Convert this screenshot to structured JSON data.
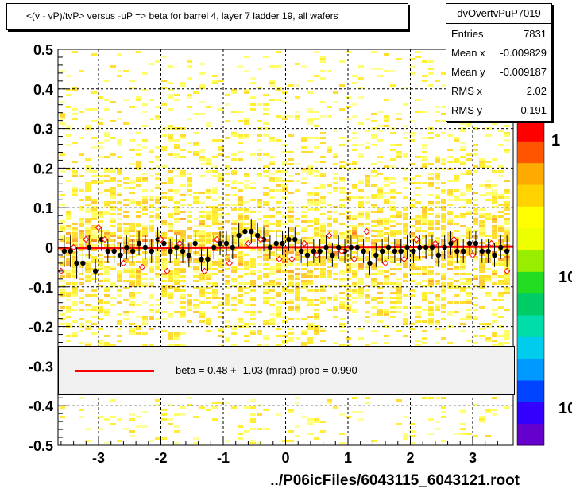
{
  "title": "<(v - vP)/tvP> versus  -uP => beta for barrel 4, layer 7 ladder 19, all wafers",
  "stats": {
    "name": "dvOvertvPuP7019",
    "rows": [
      {
        "label": "Entries",
        "value": "7831"
      },
      {
        "label": "Mean x",
        "value": "-0.009829"
      },
      {
        "label": "Mean y",
        "value": "-0.009187"
      },
      {
        "label": "RMS x",
        "value": "2.02"
      },
      {
        "label": "RMS y",
        "value": "0.191"
      }
    ]
  },
  "legend": {
    "text": "beta =    0.48 +-   1.03 (mrad) prob = 0.990",
    "line_color": "#ff0000"
  },
  "xlabel": "../P06icFiles/6043115_6043121.root",
  "colors": {
    "fit_line": "#ff0000",
    "profile_points": "#000000",
    "open_markers": "#ff0000"
  },
  "chart_data": {
    "type": "heatmap",
    "xlim": [
      -3.65,
      3.65
    ],
    "ylim": [
      -0.5,
      0.5
    ],
    "x_ticks": [
      "-3",
      "-2",
      "-1",
      "0",
      "1",
      "2",
      "3"
    ],
    "x_tick_values": [
      -3,
      -2,
      -1,
      0,
      1,
      2,
      3
    ],
    "y_ticks": [
      "-0.5",
      "-0.4",
      "-0.3",
      "-0.2",
      "-0.1",
      "0",
      "0.1",
      "0.2",
      "0.3",
      "0.4",
      "0.5"
    ],
    "y_tick_values": [
      -0.5,
      -0.4,
      -0.3,
      -0.2,
      -0.1,
      0,
      0.1,
      0.2,
      0.3,
      0.4,
      0.5
    ],
    "grid": true,
    "colorbar_labels": [
      "1",
      "10",
      "10"
    ],
    "fit": {
      "slope_mrad": 0.48,
      "error_mrad": 1.03,
      "prob": 0.99
    },
    "profile": {
      "x": [
        -3.55,
        -3.45,
        -3.35,
        -3.25,
        -3.15,
        -3.05,
        -2.95,
        -2.85,
        -2.75,
        -2.65,
        -2.55,
        -2.45,
        -2.35,
        -2.25,
        -2.15,
        -2.05,
        -1.95,
        -1.85,
        -1.75,
        -1.65,
        -1.55,
        -1.45,
        -1.35,
        -1.25,
        -1.15,
        -1.05,
        -0.95,
        -0.85,
        -0.75,
        -0.65,
        -0.55,
        -0.45,
        -0.35,
        -0.25,
        -0.15,
        -0.05,
        0.05,
        0.15,
        0.25,
        0.35,
        0.45,
        0.55,
        0.65,
        0.75,
        0.85,
        0.95,
        1.05,
        1.15,
        1.25,
        1.35,
        1.45,
        1.55,
        1.65,
        1.75,
        1.85,
        1.95,
        2.05,
        2.15,
        2.25,
        2.35,
        2.45,
        2.55,
        2.65,
        2.75,
        2.85,
        2.95,
        3.05,
        3.15,
        3.25,
        3.35,
        3.45,
        3.55
      ],
      "y": [
        -0.01,
        -0.01,
        -0.04,
        -0.04,
        0.0,
        -0.06,
        0.02,
        -0.01,
        -0.01,
        -0.02,
        0.0,
        -0.01,
        0.01,
        0.0,
        -0.01,
        0.02,
        0.01,
        -0.01,
        0.0,
        -0.01,
        -0.02,
        0.01,
        -0.03,
        -0.03,
        0.0,
        0.01,
        0.01,
        0.0,
        0.03,
        0.04,
        0.04,
        0.03,
        0.02,
        0.0,
        0.01,
        0.01,
        0.02,
        0.02,
        -0.01,
        -0.02,
        -0.01,
        -0.01,
        0.0,
        -0.02,
        0.0,
        -0.01,
        0.0,
        0.0,
        -0.01,
        -0.04,
        -0.02,
        -0.01,
        0.0,
        -0.01,
        -0.01,
        0.0,
        -0.01,
        0.0,
        0.0,
        0.0,
        -0.02,
        0.0,
        0.01,
        -0.01,
        -0.01,
        0.01,
        0.01,
        -0.01,
        -0.01,
        -0.02,
        0.0,
        -0.01
      ],
      "err": [
        0.04,
        0.04,
        0.04,
        0.03,
        0.03,
        0.03,
        0.03,
        0.03,
        0.03,
        0.03,
        0.03,
        0.03,
        0.03,
        0.03,
        0.03,
        0.03,
        0.03,
        0.03,
        0.03,
        0.03,
        0.03,
        0.03,
        0.03,
        0.03,
        0.03,
        0.03,
        0.03,
        0.03,
        0.03,
        0.03,
        0.03,
        0.03,
        0.03,
        0.03,
        0.03,
        0.03,
        0.03,
        0.03,
        0.03,
        0.03,
        0.03,
        0.03,
        0.03,
        0.03,
        0.03,
        0.03,
        0.03,
        0.03,
        0.03,
        0.03,
        0.03,
        0.03,
        0.03,
        0.03,
        0.03,
        0.03,
        0.03,
        0.03,
        0.03,
        0.03,
        0.03,
        0.03,
        0.03,
        0.03,
        0.03,
        0.03,
        0.03,
        0.03,
        0.03,
        0.03,
        0.03,
        0.04
      ]
    },
    "open_markers": {
      "x": [
        -3.6,
        -3.4,
        -3.2,
        -3.0,
        -2.9,
        -2.6,
        -2.3,
        -2.0,
        -1.9,
        -1.7,
        -1.3,
        -1.1,
        -0.9,
        -0.6,
        -0.4,
        -0.1,
        0.1,
        0.3,
        0.5,
        0.7,
        0.9,
        1.1,
        1.3,
        1.6,
        1.9,
        2.1,
        2.4,
        2.7,
        3.0,
        3.3,
        3.55
      ],
      "y": [
        -0.06,
        0.0,
        0.02,
        0.05,
        0.02,
        -0.04,
        -0.05,
        0.02,
        -0.06,
        0.01,
        -0.06,
        0.02,
        -0.04,
        0.01,
        0.02,
        -0.03,
        -0.03,
        0.01,
        -0.02,
        0.03,
        -0.01,
        -0.03,
        0.04,
        -0.04,
        -0.03,
        0.02,
        0.01,
        0.02,
        -0.02,
        0.01,
        -0.06
      ]
    }
  }
}
